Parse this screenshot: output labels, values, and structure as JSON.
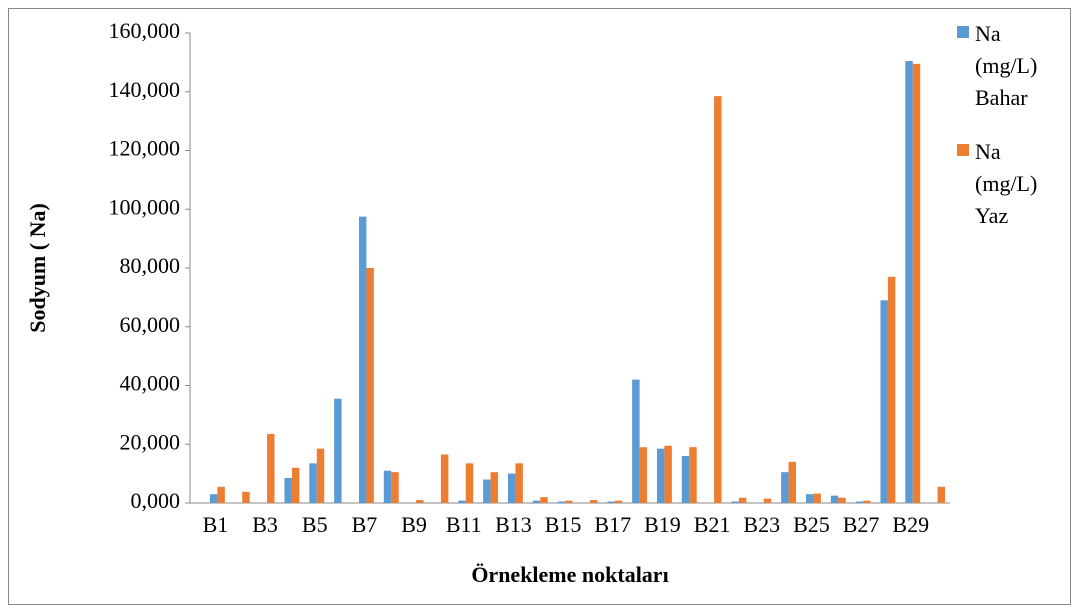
{
  "chart_data": {
    "type": "bar",
    "categories": [
      "B1",
      null,
      "B3",
      null,
      "B5",
      null,
      "B7",
      null,
      "B9",
      null,
      "B11",
      null,
      "B13",
      null,
      "B15",
      null,
      "B17",
      null,
      "B19",
      null,
      "B21",
      null,
      "B23",
      null,
      "B25",
      null,
      "B27",
      null,
      "B29",
      null
    ],
    "series": [
      {
        "name": "Na (mg/L) Bahar",
        "color": "#5b9bd5",
        "values": [
          3,
          0,
          0,
          8.5,
          13.5,
          35.5,
          97.5,
          11,
          0,
          0,
          0.8,
          8,
          10,
          0.8,
          0.5,
          0,
          0.5,
          42,
          18.5,
          16,
          0,
          0.5,
          0,
          10.5,
          3,
          2.5,
          0.5,
          69,
          150.5,
          0
        ]
      },
      {
        "name": "Na (mg/L) Yaz",
        "color": "#ed7d31",
        "values": [
          5.5,
          3.8,
          23.5,
          12,
          18.5,
          0,
          80,
          10.5,
          1,
          16.5,
          13.5,
          10.5,
          13.5,
          2,
          0.8,
          1,
          0.8,
          19,
          19.5,
          19,
          138.5,
          1.8,
          1.5,
          14,
          3.2,
          1.8,
          0.8,
          77,
          149.5,
          5.5
        ]
      }
    ],
    "ylabel": "Sodyum ( Na)",
    "xlabel": "Örnekleme noktaları",
    "ylim": [
      0,
      160
    ],
    "yticks": [
      {
        "value": 0,
        "label": "0,000"
      },
      {
        "value": 20,
        "label": "20,000"
      },
      {
        "value": 40,
        "label": "40,000"
      },
      {
        "value": 60,
        "label": "60,000"
      },
      {
        "value": 80,
        "label": "80,000"
      },
      {
        "value": 100,
        "label": "100,000"
      },
      {
        "value": 120,
        "label": "120,000"
      },
      {
        "value": 140,
        "label": "140,000"
      },
      {
        "value": 160,
        "label": "160,000"
      }
    ],
    "grid": false,
    "legend": "right"
  }
}
